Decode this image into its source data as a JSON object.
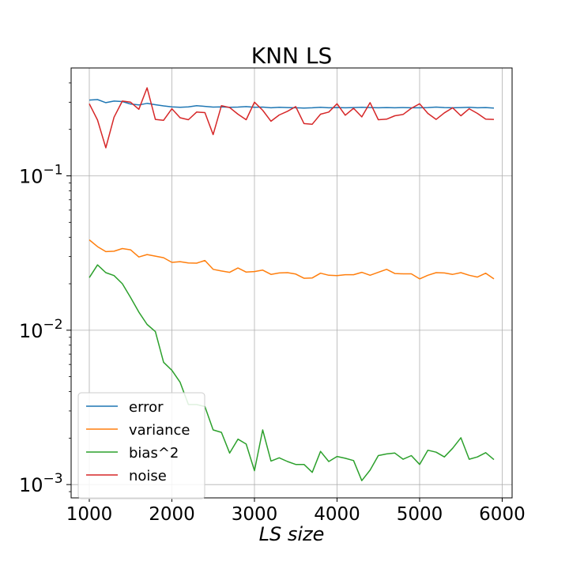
{
  "chart_data": {
    "type": "line",
    "title": "KNN LS",
    "xlabel": "LS size",
    "ylabel": "",
    "yscale": "log",
    "xlim": [
      780,
      6120
    ],
    "ylim": [
      0.00082,
      0.5
    ],
    "grid": true,
    "legend_position": "lower-left",
    "x_ticks": [
      1000,
      2000,
      3000,
      4000,
      5000,
      6000
    ],
    "x_tick_labels": [
      "1000",
      "2000",
      "3000",
      "4000",
      "5000",
      "6000"
    ],
    "y_ticks": [
      0.001,
      0.01,
      0.1
    ],
    "y_tick_labels": [
      {
        "base": "10",
        "exp": "−3"
      },
      {
        "base": "10",
        "exp": "−2"
      },
      {
        "base": "10",
        "exp": "−1"
      }
    ],
    "x": [
      1000,
      1100,
      1200,
      1300,
      1400,
      1500,
      1600,
      1700,
      1800,
      1900,
      2000,
      2100,
      2200,
      2300,
      2400,
      2500,
      2600,
      2700,
      2800,
      2900,
      3000,
      3100,
      3200,
      3300,
      3400,
      3500,
      3600,
      3700,
      3800,
      3900,
      4000,
      4100,
      4200,
      4300,
      4400,
      4500,
      4600,
      4700,
      4800,
      4900,
      5000,
      5100,
      5200,
      5300,
      5400,
      5500,
      5600,
      5700,
      5800,
      5900
    ],
    "series": [
      {
        "name": "error",
        "color": "#1f77b4",
        "values": [
          0.31,
          0.312,
          0.298,
          0.305,
          0.303,
          0.292,
          0.288,
          0.295,
          0.289,
          0.284,
          0.28,
          0.278,
          0.28,
          0.285,
          0.282,
          0.279,
          0.28,
          0.278,
          0.279,
          0.281,
          0.278,
          0.279,
          0.276,
          0.278,
          0.277,
          0.276,
          0.275,
          0.276,
          0.278,
          0.276,
          0.277,
          0.276,
          0.277,
          0.278,
          0.277,
          0.276,
          0.277,
          0.276,
          0.277,
          0.276,
          0.276,
          0.277,
          0.279,
          0.277,
          0.276,
          0.277,
          0.278,
          0.276,
          0.277,
          0.275
        ]
      },
      {
        "name": "variance",
        "color": "#ff7f0e",
        "values": [
          0.0385,
          0.0348,
          0.0323,
          0.0325,
          0.0338,
          0.0332,
          0.0298,
          0.0309,
          0.0302,
          0.0295,
          0.0275,
          0.0278,
          0.0273,
          0.0272,
          0.0283,
          0.0248,
          0.0242,
          0.0237,
          0.0253,
          0.0238,
          0.024,
          0.0245,
          0.023,
          0.0235,
          0.0236,
          0.0231,
          0.0217,
          0.0218,
          0.0234,
          0.0227,
          0.0226,
          0.0229,
          0.0229,
          0.0237,
          0.0227,
          0.0237,
          0.0248,
          0.0233,
          0.0232,
          0.0232,
          0.0215,
          0.0227,
          0.0236,
          0.0235,
          0.023,
          0.0236,
          0.0227,
          0.0221,
          0.0234,
          0.0215
        ]
      },
      {
        "name": "bias^2",
        "color": "#2ca02c",
        "values": [
          0.0219,
          0.0265,
          0.0236,
          0.0226,
          0.02,
          0.0163,
          0.0131,
          0.0109,
          0.0098,
          0.0062,
          0.0055,
          0.0046,
          0.0033,
          0.0033,
          0.0032,
          0.00226,
          0.00218,
          0.0016,
          0.00197,
          0.00183,
          0.00123,
          0.00226,
          0.00142,
          0.00149,
          0.00141,
          0.00135,
          0.00135,
          0.0012,
          0.00164,
          0.00141,
          0.00152,
          0.00148,
          0.00143,
          0.00106,
          0.00124,
          0.00154,
          0.00158,
          0.0016,
          0.00146,
          0.00154,
          0.00135,
          0.00167,
          0.00162,
          0.00151,
          0.00172,
          0.00201,
          0.00146,
          0.00151,
          0.00161,
          0.00145
        ]
      },
      {
        "name": "noise",
        "color": "#d62728",
        "values": [
          0.293,
          0.23,
          0.152,
          0.24,
          0.305,
          0.3,
          0.27,
          0.372,
          0.232,
          0.229,
          0.272,
          0.238,
          0.231,
          0.259,
          0.257,
          0.185,
          0.285,
          0.277,
          0.251,
          0.231,
          0.3,
          0.266,
          0.226,
          0.248,
          0.262,
          0.281,
          0.218,
          0.216,
          0.251,
          0.259,
          0.293,
          0.247,
          0.274,
          0.241,
          0.298,
          0.231,
          0.233,
          0.245,
          0.25,
          0.274,
          0.293,
          0.254,
          0.232,
          0.256,
          0.276,
          0.245,
          0.272,
          0.254,
          0.233,
          0.232
        ]
      }
    ]
  }
}
